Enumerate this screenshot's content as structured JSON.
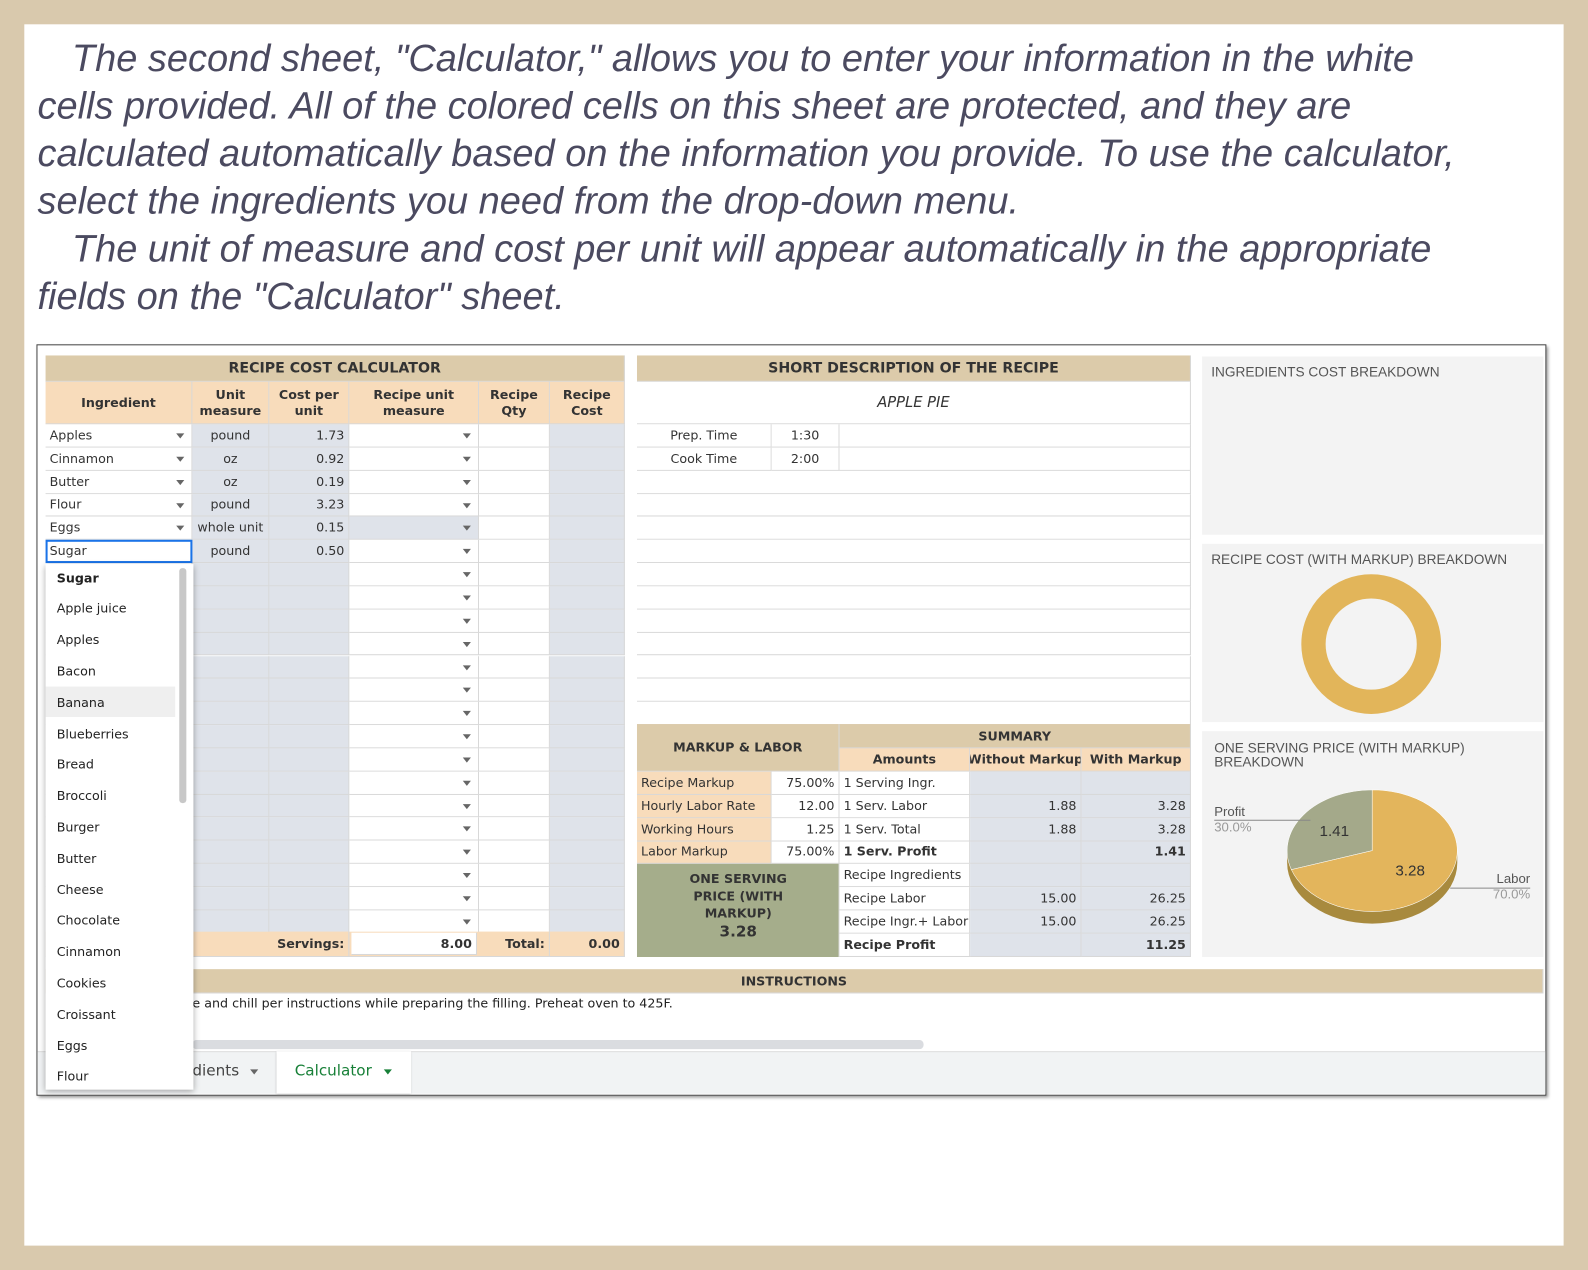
{
  "intro": {
    "lines": [
      "The second sheet, \"Calculator,\" allows you to enter your information in the white",
      "cells provided. All of the colored cells on this sheet are protected, and they are",
      "calculated automatically based on the information you provide. To use the calculator,",
      "select the ingredients you need from the drop-down menu.",
      "The unit of measure and cost per unit will appear automatically in the appropriate",
      "fields on the \"Calculator\" sheet."
    ]
  },
  "calculator": {
    "title": "RECIPE COST CALCULATOR",
    "headers": [
      "Ingredient",
      "Unit measure",
      "Cost per unit",
      "Recipe unit measure",
      "Recipe Qty",
      "Recipe Cost"
    ],
    "rows": [
      [
        "Apples",
        "pound",
        "1.73"
      ],
      [
        "Cinnamon",
        "oz",
        "0.92"
      ],
      [
        "Butter",
        "oz",
        "0.19"
      ],
      [
        "Flour",
        "pound",
        "3.23"
      ],
      [
        "Eggs",
        "whole unit",
        "0.15"
      ],
      [
        "Sugar",
        "pound",
        "0.50"
      ]
    ],
    "servings_label": "Servings:",
    "servings": "8.00",
    "total_label": "Total:",
    "total": "0.00"
  },
  "dropdown": {
    "items": [
      "Sugar",
      "Apple juice",
      "Apples",
      "Bacon",
      "Banana",
      "Blueberries",
      "Bread",
      "Broccoli",
      "Burger",
      "Butter",
      "Cheese",
      "Chocolate",
      "Cinnamon",
      "Cookies",
      "Croissant",
      "Eggs",
      "Flour"
    ]
  },
  "description": {
    "title": "SHORT DESCRIPTION OF THE RECIPE",
    "recipe": "APPLE PIE",
    "times": [
      [
        "Prep. Time",
        "1:30"
      ],
      [
        "Cook Time",
        "2:00"
      ]
    ]
  },
  "markup_labor": {
    "title": "MARKUP & LABOR",
    "rows": [
      [
        "Recipe Markup",
        "75.00%"
      ],
      [
        "Hourly Labor Rate",
        "12.00"
      ],
      [
        "Working Hours",
        "1.25"
      ],
      [
        "Labor Markup",
        "75.00%"
      ]
    ],
    "serving_price_title": "ONE SERVING PRICE (WITH MARKUP)",
    "serving_price": "3.28"
  },
  "summary": {
    "title": "SUMMARY",
    "headers": [
      "Amounts",
      "Without Markup",
      "With Markup"
    ],
    "rows": [
      {
        "label": "1 Serving Ingr."
      },
      {
        "label": "1 Serv. Labor",
        "without": "1.88",
        "with": "3.28"
      },
      {
        "label": "1 Serv. Total",
        "without": "1.88",
        "with": "3.28"
      },
      {
        "label": "1 Serv. Profit",
        "with": "1.41",
        "bold": true
      },
      {
        "label": "Recipe Ingredients"
      },
      {
        "label": "Recipe Labor",
        "without": "15.00",
        "with": "26.25"
      },
      {
        "label": "Recipe Ingr.+ Labor",
        "without": "15.00",
        "with": "26.25"
      },
      {
        "label": "Recipe Profit",
        "with": "11.25",
        "bold": true
      }
    ]
  },
  "charts": [
    {
      "title": "INGREDIENTS COST BREAKDOWN"
    },
    {
      "title": "RECIPE COST (WITH MARKUP) BREAKDOWN"
    },
    {
      "title": "ONE SERVING PRICE (WITH MARKUP) BREAKDOWN",
      "type": "pie",
      "categories": [
        "Profit",
        "Labor"
      ],
      "values": [
        1.41,
        3.28
      ],
      "percent_labels": [
        "30.0%",
        "70.0%"
      ],
      "colors": [
        "#a4a98a",
        "#e3b55c"
      ]
    }
  ],
  "instructions": {
    "title": "INSTRUCTIONS",
    "text": "e and chill per instructions while preparing the filling. Preheat oven to 425F."
  },
  "tabs": [
    "dients",
    "Calculator"
  ]
}
